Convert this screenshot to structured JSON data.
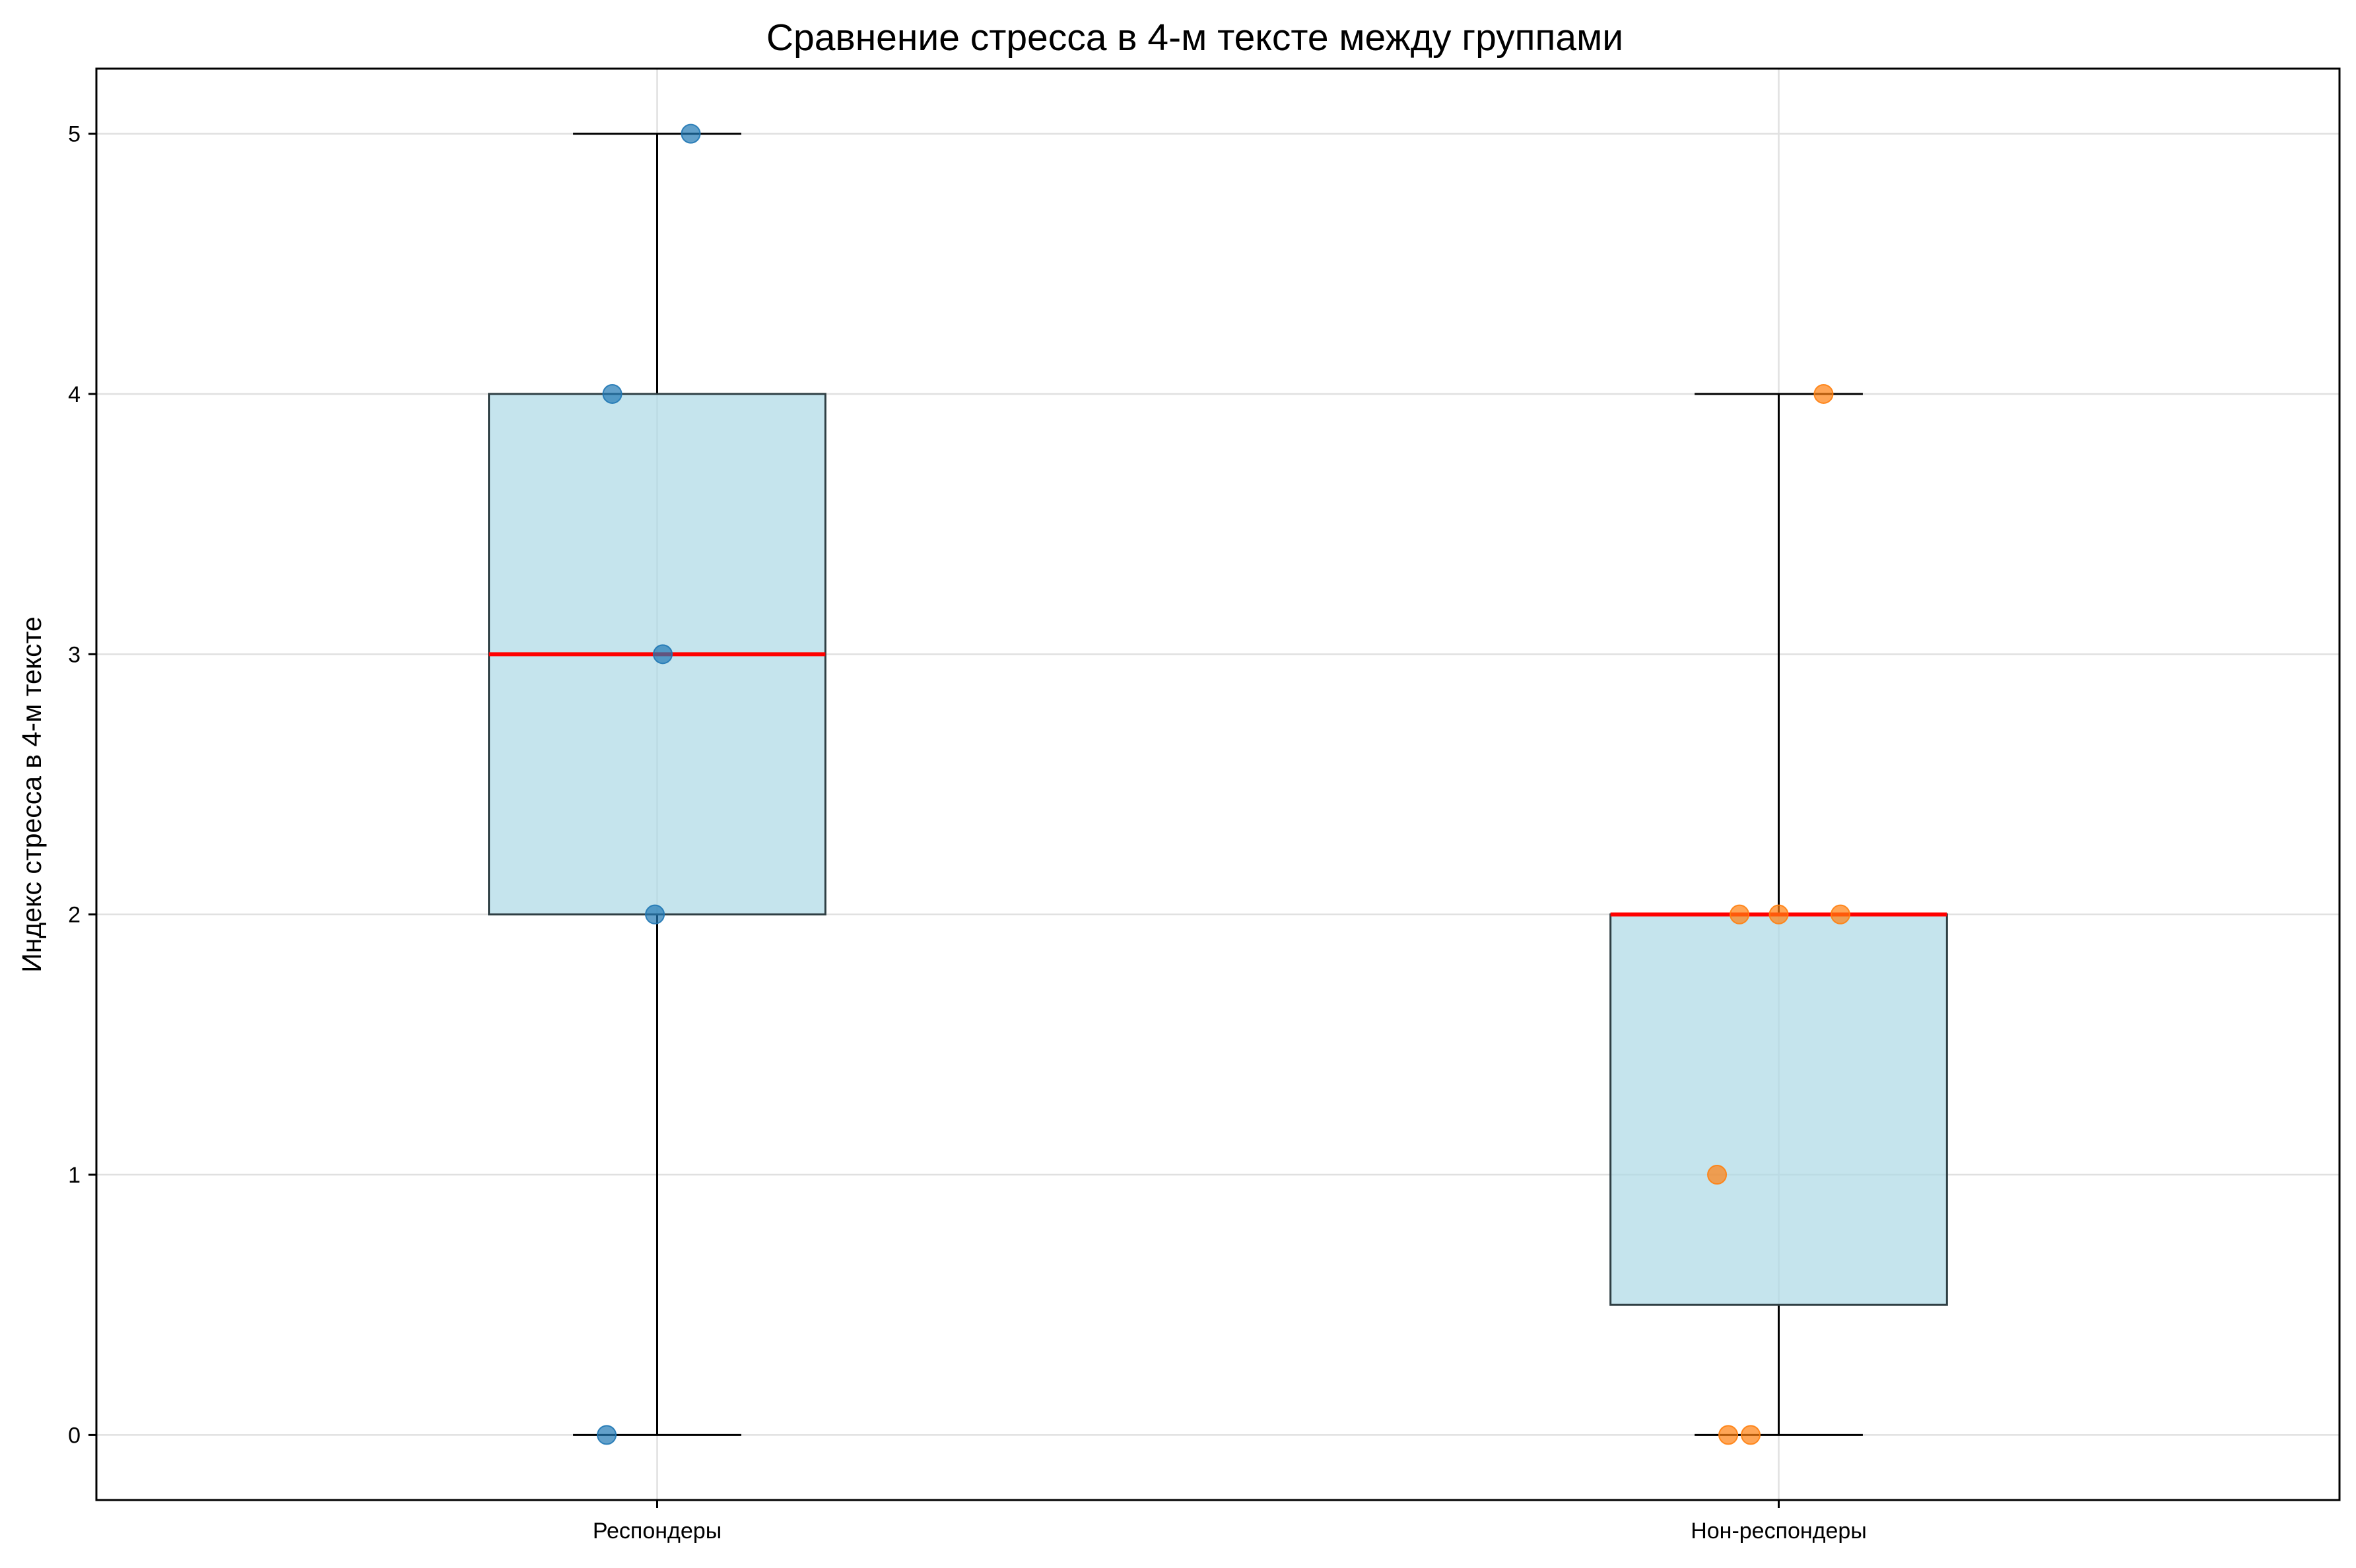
{
  "chart_data": {
    "type": "box",
    "title": "Сравнение стресса в 4-м тексте между группами",
    "xlabel": "",
    "ylabel": "Индекс стресса в 4-м тексте",
    "ylim": [
      -0.25,
      5.25
    ],
    "yticks": [
      0,
      1,
      2,
      3,
      4,
      5
    ],
    "grid": true,
    "categories": [
      "Респондеры",
      "Нон-респондеры"
    ],
    "boxes": [
      {
        "category": "Респондеры",
        "whisker_low": 0,
        "q1": 2,
        "median": 3,
        "q3": 4,
        "whisker_high": 5
      },
      {
        "category": "Нон-респондеры",
        "whisker_low": 0,
        "q1": 0.5,
        "median": 2,
        "q3": 2,
        "whisker_high": 4
      }
    ],
    "points": [
      {
        "category": "Респондеры",
        "values": [
          5,
          4,
          3,
          2,
          0
        ],
        "jitter": [
          0.03,
          -0.04,
          0.005,
          -0.002,
          -0.045
        ]
      },
      {
        "category": "Нон-респондеры",
        "values": [
          4,
          2,
          2,
          2,
          1,
          0,
          0
        ],
        "jitter": [
          0.04,
          -0.035,
          0.0,
          0.055,
          -0.055,
          -0.045,
          -0.025
        ]
      }
    ],
    "colors": {
      "box_fill": "#add8e6",
      "box_edge": "#2f3f44",
      "median": "#ff0000",
      "group1_points": "#1f77b4",
      "group2_points": "#ff7f0e",
      "grid": "#e0e0e0"
    }
  }
}
